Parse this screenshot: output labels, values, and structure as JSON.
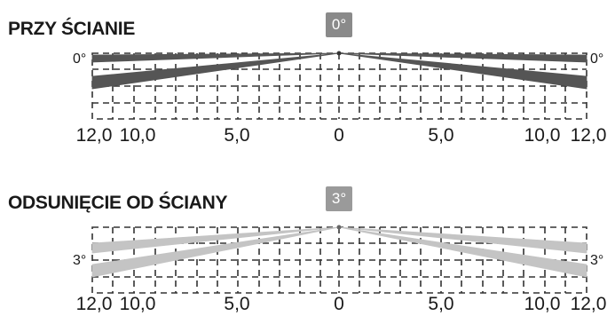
{
  "panels": [
    {
      "title": "PRZY ŚCIANIE",
      "badge": "0°",
      "angle_left": "0°",
      "angle_right": "0°",
      "ticks": [
        "12,0",
        "10,0",
        "5,0",
        "0",
        "5,0",
        "10,0",
        "12,0"
      ],
      "beam_color": "#555555"
    },
    {
      "title": "ODSUNIĘCIE OD ŚCIANY",
      "badge": "3°",
      "angle_left": "3°",
      "angle_right": "3°",
      "ticks": [
        "12,0",
        "10,0",
        "5,0",
        "0",
        "5,0",
        "10,0",
        "12,0"
      ],
      "beam_color": "#c4c4c4"
    }
  ]
}
